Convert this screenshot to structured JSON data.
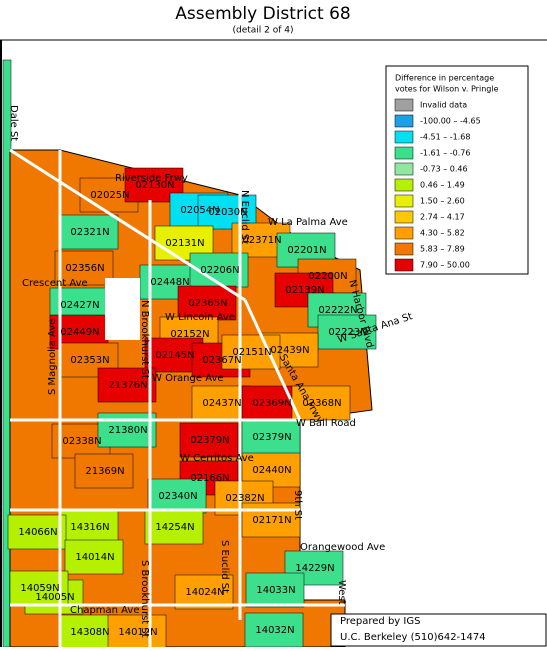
{
  "title": "Assembly District 68",
  "subtitle": "(detail 2 of 4)",
  "legend": {
    "title_line1": "Difference in percentage",
    "title_line2": "votes for Wilson v. Pringle",
    "items": [
      {
        "label": "Invalid data",
        "color": "#a0a0a0"
      },
      {
        "label": "-100.00 –  -4.65",
        "color": "#1ea0e6"
      },
      {
        "label": "-4.51 –  -1.68",
        "color": "#00e0f0"
      },
      {
        "label": "-1.61 –  -0.76",
        "color": "#3ce08c"
      },
      {
        "label": "-0.73 –   0.46",
        "color": "#90e8a0"
      },
      {
        "label": "0.46 –   1.49",
        "color": "#b4f000"
      },
      {
        "label": "1.50 –   2.60",
        "color": "#e6f000"
      },
      {
        "label": "2.74 –   4.17",
        "color": "#ffc800"
      },
      {
        "label": "4.30 –   5.82",
        "color": "#ffa000"
      },
      {
        "label": "5.83 –   7.89",
        "color": "#f07800"
      },
      {
        "label": "7.90 –  50.00",
        "color": "#e60000"
      }
    ]
  },
  "streets": [
    "Dale St",
    "Riverside Frwy",
    "N Euclid St",
    "W La Palma Ave",
    "N Harbor Blvd",
    "W Santa Ana St",
    "W Lincoln Ave",
    "Crescent Ave",
    "W Orange Ave",
    "W Cerritos Ave",
    "W Ball Road",
    "9th St",
    "Orangewood Ave",
    "Chapman Ave",
    "West",
    "Santa Ana Frwy",
    "S Magnolia Ave",
    "N Brookhurst St",
    "S Brookhurst St",
    "S Euclid St"
  ],
  "precincts": [
    {
      "label": "02025N",
      "color": "#f07800"
    },
    {
      "label": "02130N",
      "color": "#e60000"
    },
    {
      "label": "02054N",
      "color": "#00e0f0"
    },
    {
      "label": "02030N",
      "color": "#00e0f0"
    },
    {
      "label": "02321N",
      "color": "#3ce08c"
    },
    {
      "label": "02131N",
      "color": "#e6f000"
    },
    {
      "label": "02371N",
      "color": "#ffa000"
    },
    {
      "label": "02201N",
      "color": "#3ce08c"
    },
    {
      "label": "02356N",
      "color": "#f07800"
    },
    {
      "label": "02448N",
      "color": "#3ce08c"
    },
    {
      "label": "02206N",
      "color": "#3ce08c"
    },
    {
      "label": "02200N",
      "color": "#f07800"
    },
    {
      "label": "02139N",
      "color": "#e60000"
    },
    {
      "label": "02427N",
      "color": "#3ce08c"
    },
    {
      "label": "02365N",
      "color": "#e60000"
    },
    {
      "label": "02222N",
      "color": "#3ce08c"
    },
    {
      "label": "02223N",
      "color": "#3ce08c"
    },
    {
      "label": "02152N",
      "color": "#ffa000"
    },
    {
      "label": "02449N",
      "color": "#e60000"
    },
    {
      "label": "02145N",
      "color": "#e60000"
    },
    {
      "label": "02367N",
      "color": "#e60000"
    },
    {
      "label": "02439N",
      "color": "#ffa000"
    },
    {
      "label": "02151N",
      "color": "#ffa000"
    },
    {
      "label": "02353N",
      "color": "#f07800"
    },
    {
      "label": "21376N",
      "color": "#e60000"
    },
    {
      "label": "02437N",
      "color": "#ffa000"
    },
    {
      "label": "02369N",
      "color": "#e60000"
    },
    {
      "label": "02368N",
      "color": "#ffa000"
    },
    {
      "label": "02338N",
      "color": "#f07800"
    },
    {
      "label": "21380N",
      "color": "#3ce08c"
    },
    {
      "label": "02379N",
      "color": "#e60000"
    },
    {
      "label": "02379N",
      "color": "#3ce08c"
    },
    {
      "label": "21369N",
      "color": "#f07800"
    },
    {
      "label": "02166N",
      "color": "#e60000"
    },
    {
      "label": "02440N",
      "color": "#ffa000"
    },
    {
      "label": "02340N",
      "color": "#3ce08c"
    },
    {
      "label": "02382N",
      "color": "#ffa000"
    },
    {
      "label": "02171N",
      "color": "#ffa000"
    },
    {
      "label": "14316N",
      "color": "#b4f000"
    },
    {
      "label": "14254N",
      "color": "#b4f000"
    },
    {
      "label": "14066N",
      "color": "#b4f000"
    },
    {
      "label": "14014N",
      "color": "#b4f000"
    },
    {
      "label": "14005N",
      "color": "#b4f000"
    },
    {
      "label": "14308N",
      "color": "#b4f000"
    },
    {
      "label": "14012N",
      "color": "#ffa000"
    },
    {
      "label": "14024N",
      "color": "#ffa000"
    },
    {
      "label": "14229N",
      "color": "#3ce08c"
    },
    {
      "label": "14033N",
      "color": "#3ce08c"
    },
    {
      "label": "14032N",
      "color": "#3ce08c"
    },
    {
      "label": "14059N",
      "color": "#b4f000"
    }
  ],
  "footer": {
    "line1": "Prepared by IGS",
    "line2": "U.C. Berkeley  (510)642-1474"
  }
}
